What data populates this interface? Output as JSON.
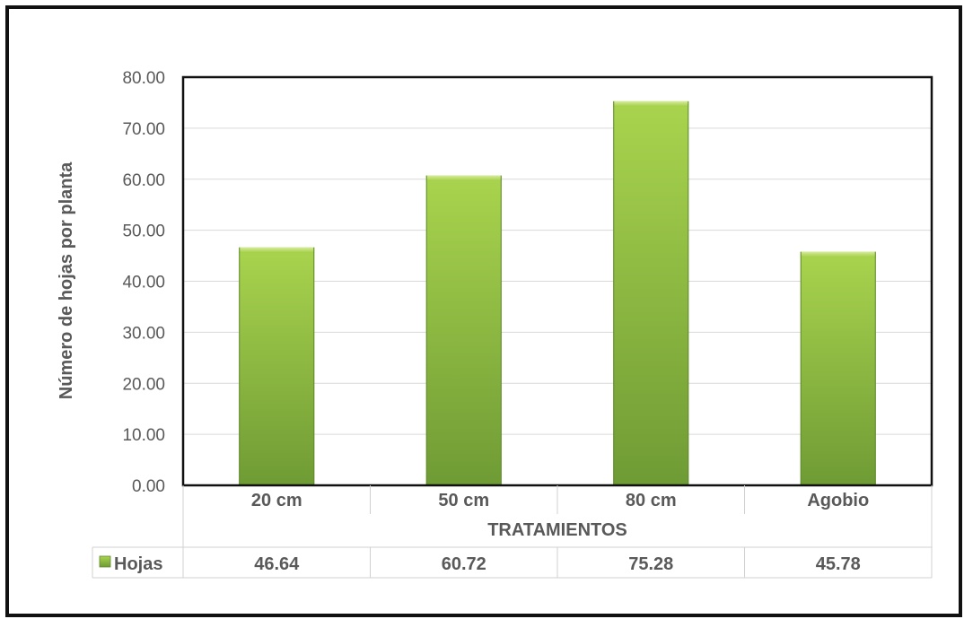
{
  "chart_data": {
    "type": "bar",
    "title": "",
    "xlabel": "TRATAMIENTOS",
    "ylabel": "Número de hojas por planta",
    "categories": [
      "20 cm",
      "50 cm",
      "80 cm",
      "Agobio"
    ],
    "series": [
      {
        "name": "Hojas",
        "values": [
          46.64,
          60.72,
          75.28,
          45.78
        ],
        "value_labels": [
          "46.64",
          "60.72",
          "75.28",
          "45.78"
        ],
        "color": "#8dc63f"
      }
    ],
    "ylim": [
      0,
      80
    ],
    "yticks": [
      "0.00",
      "10.00",
      "20.00",
      "30.00",
      "40.00",
      "50.00",
      "60.00",
      "70.00",
      "80.00"
    ],
    "grid": true,
    "legend": "data-table-left",
    "data_table": true
  },
  "colors": {
    "bar_light": "#a6d24a",
    "bar_dark": "#6e9a34",
    "border": "#111111",
    "grid": "#d9d9d9",
    "text": "#595959"
  }
}
